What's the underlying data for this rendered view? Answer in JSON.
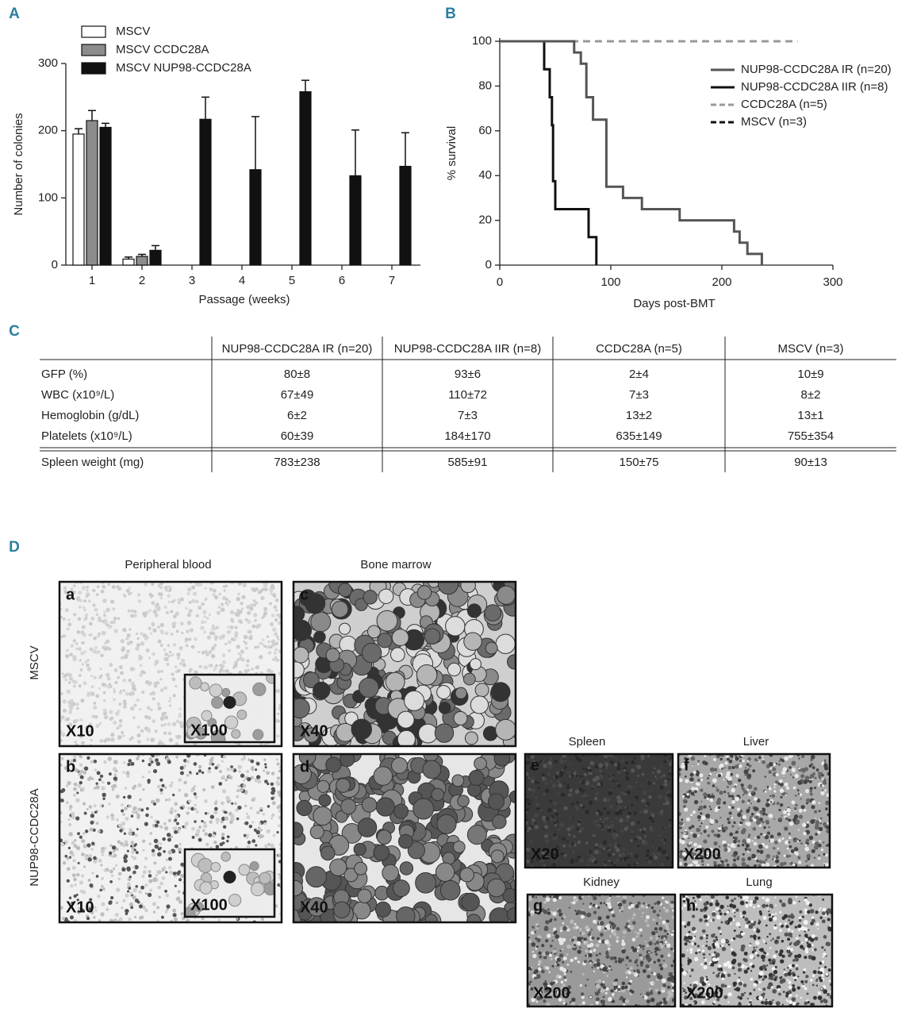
{
  "chart_data": [
    {
      "type": "bar",
      "panel": "A",
      "categories": [
        "1",
        "2",
        "3",
        "4",
        "5",
        "6",
        "7"
      ],
      "series": [
        {
          "name": "MSCV",
          "color": "#ffffff",
          "values": [
            195,
            9,
            null,
            null,
            null,
            null,
            null
          ],
          "errors": [
            8,
            3,
            null,
            null,
            null,
            null,
            null
          ]
        },
        {
          "name": "MSCV CCDC28A",
          "color": "#8c8c8c",
          "values": [
            215,
            13,
            null,
            null,
            null,
            null,
            null
          ],
          "errors": [
            15,
            3,
            null,
            null,
            null,
            null,
            null
          ]
        },
        {
          "name": "MSCV NUP98-CCDC28A",
          "color": "#111111",
          "values": [
            205,
            22,
            217,
            142,
            258,
            133,
            147
          ],
          "errors": [
            6,
            7,
            33,
            79,
            17,
            68,
            50
          ]
        }
      ],
      "ylabel": "Number of colonies",
      "xlabel": "Passage (weeks)",
      "ylim": [
        0,
        300
      ],
      "yticks": [
        0,
        100,
        200,
        300
      ]
    },
    {
      "type": "line",
      "panel": "B",
      "drawstyle": "steps-post",
      "series": [
        {
          "name": "NUP98-CCDC28A IR (n=20)",
          "color": "#555555",
          "linestyle": "solid",
          "x": [
            0,
            67,
            73,
            78,
            84,
            96,
            111,
            128,
            162,
            211,
            216,
            223,
            236
          ],
          "values": [
            100,
            95,
            90,
            75,
            65,
            35,
            30,
            25,
            20,
            15,
            10,
            5,
            0
          ]
        },
        {
          "name": "NUP98-CCDC28A IIR (n=8)",
          "color": "#111111",
          "linestyle": "solid",
          "x": [
            0,
            40,
            45,
            47,
            48,
            50,
            80,
            87
          ],
          "values": [
            100,
            87.5,
            75,
            62.5,
            37.5,
            25,
            12.5,
            0
          ]
        },
        {
          "name": "CCDC28A (n=5)",
          "color": "#999999",
          "linestyle": "dashed",
          "x": [
            0,
            268
          ],
          "values": [
            100,
            100
          ]
        },
        {
          "name": "MSCV (n=3)",
          "color": "#111111",
          "linestyle": "dashed",
          "x": [
            0,
            268
          ],
          "values": [
            100,
            100
          ]
        }
      ],
      "ylabel": "% survival",
      "xlabel": "Days post-BMT",
      "xlim": [
        0,
        300
      ],
      "xticks": [
        0,
        100,
        200,
        300
      ],
      "ylim": [
        0,
        100
      ],
      "yticks": [
        0,
        20,
        40,
        60,
        80,
        100
      ]
    }
  ],
  "table": {
    "panel": "C",
    "columns": [
      "NUP98-CCDC28A IR (n=20)",
      "NUP98-CCDC28A IIR (n=8)",
      "CCDC28A (n=5)",
      "MSCV (n=3)"
    ],
    "rows": [
      {
        "label": "GFP (%)",
        "cells": [
          "80±8",
          "93±6",
          "2±4",
          "10±9"
        ]
      },
      {
        "label": "WBC (x10⁹/L)",
        "cells": [
          "67±49",
          "110±72",
          "7±3",
          "8±2"
        ]
      },
      {
        "label": "Hemoglobin (g/dL)",
        "cells": [
          "6±2",
          "7±3",
          "13±2",
          "13±1"
        ]
      },
      {
        "label": "Platelets (x10⁹/L)",
        "cells": [
          "60±39",
          "184±170",
          "635±149",
          "755±354"
        ]
      },
      {
        "label": "Spleen weight (mg)",
        "cells": [
          "783±238",
          "585±91",
          "150±75",
          "90±13"
        ]
      }
    ]
  },
  "panel_d": {
    "panel": "D",
    "column_titles": [
      "Peripheral blood",
      "Bone marrow"
    ],
    "row_titles": [
      "MSCV",
      "NUP98-CCDC28A"
    ],
    "images": [
      {
        "letter": "a",
        "magnification": "X10",
        "inset": "X100"
      },
      {
        "letter": "c",
        "magnification": "X40"
      },
      {
        "letter": "b",
        "magnification": "X10",
        "inset": "X100"
      },
      {
        "letter": "d",
        "magnification": "X40"
      }
    ],
    "organs": [
      {
        "title": "Spleen",
        "letter": "e",
        "magnification": "X20"
      },
      {
        "title": "Liver",
        "letter": "f",
        "magnification": "X200"
      },
      {
        "title": "Kidney",
        "letter": "g",
        "magnification": "X200"
      },
      {
        "title": "Lung",
        "letter": "h",
        "magnification": "X200"
      }
    ]
  }
}
